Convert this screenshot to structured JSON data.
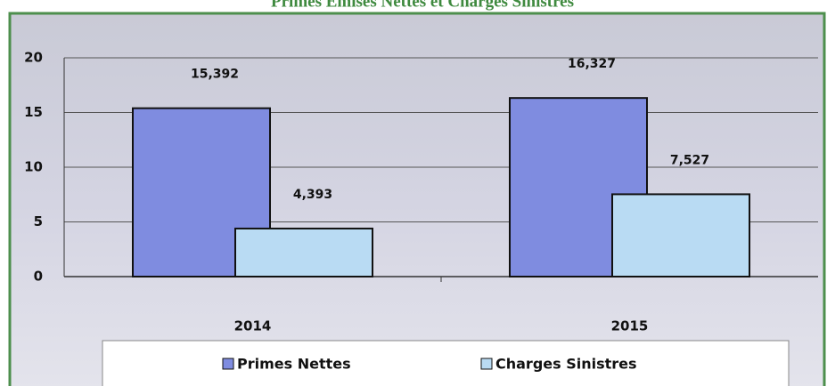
{
  "chart_data": {
    "type": "bar",
    "title": "Primes Emises Nettes et Charges Sinistres",
    "categories": [
      "2014",
      "2015"
    ],
    "series": [
      {
        "name": "Primes Nettes",
        "color": "#7f8ce0",
        "values": [
          15.392,
          16.327
        ],
        "value_labels": [
          "15,392",
          "16,327"
        ]
      },
      {
        "name": "Charges Sinistres",
        "color": "#b9dbf3",
        "values": [
          4.393,
          7.527
        ],
        "value_labels": [
          "4,393",
          "7,527"
        ]
      }
    ],
    "ylim": [
      0,
      20
    ],
    "yticks": [
      0,
      5,
      10,
      15,
      20
    ],
    "grid": true,
    "legend": "bottom"
  }
}
